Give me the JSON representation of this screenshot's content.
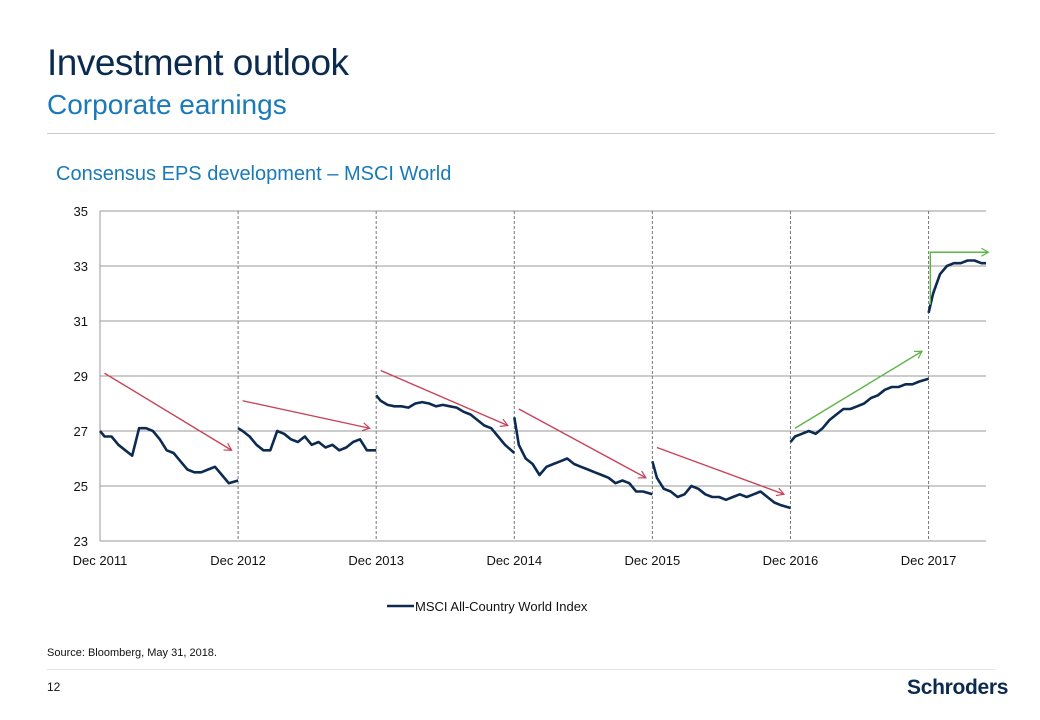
{
  "header": {
    "title": "Investment outlook",
    "subtitle": "Corporate earnings"
  },
  "chart_data": {
    "type": "line",
    "title": "Consensus EPS development – MSCI World",
    "xlabel": "",
    "ylabel": "",
    "ylim": [
      23,
      35
    ],
    "yticks": [
      23,
      25,
      27,
      29,
      31,
      33,
      35
    ],
    "xlim": [
      2011.917,
      2018.333
    ],
    "xticks": [
      {
        "label": "Dec 2011",
        "x": 2011.917
      },
      {
        "label": "Dec 2012",
        "x": 2012.917
      },
      {
        "label": "Dec 2013",
        "x": 2013.917
      },
      {
        "label": "Dec 2014",
        "x": 2014.917
      },
      {
        "label": "Dec 2015",
        "x": 2015.917
      },
      {
        "label": "Dec 2016",
        "x": 2016.917
      },
      {
        "label": "Dec 2017",
        "x": 2017.917
      }
    ],
    "grid": true,
    "year_dividers": [
      2012.917,
      2013.917,
      2014.917,
      2015.917,
      2016.917,
      2017.917
    ],
    "legend": {
      "position": "bottom-center",
      "entries": [
        "MSCI All-Country World Index"
      ]
    },
    "series": [
      {
        "name": "MSCI All-Country World Index",
        "color": "#0d2b52",
        "segments": [
          [
            [
              2011.917,
              27.0
            ],
            [
              2011.95,
              26.8
            ],
            [
              2012.0,
              26.8
            ],
            [
              2012.05,
              26.5
            ],
            [
              2012.1,
              26.3
            ],
            [
              2012.15,
              26.1
            ],
            [
              2012.2,
              27.1
            ],
            [
              2012.25,
              27.1
            ],
            [
              2012.3,
              27.0
            ],
            [
              2012.35,
              26.7
            ],
            [
              2012.4,
              26.3
            ],
            [
              2012.45,
              26.2
            ],
            [
              2012.5,
              25.9
            ],
            [
              2012.55,
              25.6
            ],
            [
              2012.6,
              25.5
            ],
            [
              2012.65,
              25.5
            ],
            [
              2012.7,
              25.6
            ],
            [
              2012.75,
              25.7
            ],
            [
              2012.8,
              25.4
            ],
            [
              2012.85,
              25.1
            ],
            [
              2012.917,
              25.2
            ]
          ],
          [
            [
              2012.917,
              27.1
            ],
            [
              2012.95,
              27.0
            ],
            [
              2013.0,
              26.8
            ],
            [
              2013.05,
              26.5
            ],
            [
              2013.1,
              26.3
            ],
            [
              2013.15,
              26.3
            ],
            [
              2013.2,
              27.0
            ],
            [
              2013.25,
              26.9
            ],
            [
              2013.3,
              26.7
            ],
            [
              2013.35,
              26.6
            ],
            [
              2013.4,
              26.8
            ],
            [
              2013.45,
              26.5
            ],
            [
              2013.5,
              26.6
            ],
            [
              2013.55,
              26.4
            ],
            [
              2013.6,
              26.5
            ],
            [
              2013.65,
              26.3
            ],
            [
              2013.7,
              26.4
            ],
            [
              2013.75,
              26.6
            ],
            [
              2013.8,
              26.7
            ],
            [
              2013.85,
              26.3
            ],
            [
              2013.917,
              26.3
            ]
          ],
          [
            [
              2013.917,
              28.3
            ],
            [
              2013.95,
              28.1
            ],
            [
              2014.0,
              27.95
            ],
            [
              2014.05,
              27.9
            ],
            [
              2014.1,
              27.9
            ],
            [
              2014.15,
              27.85
            ],
            [
              2014.2,
              28.0
            ],
            [
              2014.25,
              28.05
            ],
            [
              2014.3,
              28.0
            ],
            [
              2014.35,
              27.9
            ],
            [
              2014.4,
              27.95
            ],
            [
              2014.45,
              27.9
            ],
            [
              2014.5,
              27.85
            ],
            [
              2014.55,
              27.7
            ],
            [
              2014.6,
              27.6
            ],
            [
              2014.65,
              27.4
            ],
            [
              2014.7,
              27.2
            ],
            [
              2014.75,
              27.1
            ],
            [
              2014.8,
              26.8
            ],
            [
              2014.85,
              26.5
            ],
            [
              2014.917,
              26.2
            ]
          ],
          [
            [
              2014.917,
              27.5
            ],
            [
              2014.95,
              26.5
            ],
            [
              2015.0,
              26.0
            ],
            [
              2015.05,
              25.8
            ],
            [
              2015.1,
              25.4
            ],
            [
              2015.15,
              25.7
            ],
            [
              2015.2,
              25.8
            ],
            [
              2015.25,
              25.9
            ],
            [
              2015.3,
              26.0
            ],
            [
              2015.35,
              25.8
            ],
            [
              2015.4,
              25.7
            ],
            [
              2015.45,
              25.6
            ],
            [
              2015.5,
              25.5
            ],
            [
              2015.55,
              25.4
            ],
            [
              2015.6,
              25.3
            ],
            [
              2015.65,
              25.1
            ],
            [
              2015.7,
              25.2
            ],
            [
              2015.75,
              25.1
            ],
            [
              2015.8,
              24.8
            ],
            [
              2015.85,
              24.8
            ],
            [
              2015.917,
              24.7
            ]
          ],
          [
            [
              2015.917,
              25.9
            ],
            [
              2015.95,
              25.3
            ],
            [
              2016.0,
              24.9
            ],
            [
              2016.05,
              24.8
            ],
            [
              2016.1,
              24.6
            ],
            [
              2016.15,
              24.7
            ],
            [
              2016.2,
              25.0
            ],
            [
              2016.25,
              24.9
            ],
            [
              2016.3,
              24.7
            ],
            [
              2016.35,
              24.6
            ],
            [
              2016.4,
              24.6
            ],
            [
              2016.45,
              24.5
            ],
            [
              2016.5,
              24.6
            ],
            [
              2016.55,
              24.7
            ],
            [
              2016.6,
              24.6
            ],
            [
              2016.65,
              24.7
            ],
            [
              2016.7,
              24.8
            ],
            [
              2016.75,
              24.6
            ],
            [
              2016.8,
              24.4
            ],
            [
              2016.85,
              24.3
            ],
            [
              2016.917,
              24.2
            ]
          ],
          [
            [
              2016.917,
              26.6
            ],
            [
              2016.95,
              26.8
            ],
            [
              2017.0,
              26.9
            ],
            [
              2017.05,
              27.0
            ],
            [
              2017.1,
              26.9
            ],
            [
              2017.15,
              27.1
            ],
            [
              2017.2,
              27.4
            ],
            [
              2017.25,
              27.6
            ],
            [
              2017.3,
              27.8
            ],
            [
              2017.35,
              27.8
            ],
            [
              2017.4,
              27.9
            ],
            [
              2017.45,
              28.0
            ],
            [
              2017.5,
              28.2
            ],
            [
              2017.55,
              28.3
            ],
            [
              2017.6,
              28.5
            ],
            [
              2017.65,
              28.6
            ],
            [
              2017.7,
              28.6
            ],
            [
              2017.75,
              28.7
            ],
            [
              2017.8,
              28.7
            ],
            [
              2017.85,
              28.8
            ],
            [
              2017.917,
              28.9
            ]
          ],
          [
            [
              2017.917,
              31.3
            ],
            [
              2017.95,
              32.0
            ],
            [
              2018.0,
              32.7
            ],
            [
              2018.05,
              33.0
            ],
            [
              2018.1,
              33.1
            ],
            [
              2018.15,
              33.1
            ],
            [
              2018.2,
              33.2
            ],
            [
              2018.25,
              33.2
            ],
            [
              2018.3,
              33.1
            ],
            [
              2018.333,
              33.1
            ]
          ]
        ]
      }
    ],
    "annotations": {
      "down_color": "#c8435a",
      "up_color": "#5cb545",
      "trend_arrows": [
        {
          "direction": "down",
          "from": [
            2011.95,
            29.1
          ],
          "to": [
            2012.87,
            26.3
          ]
        },
        {
          "direction": "down",
          "from": [
            2012.95,
            28.1
          ],
          "to": [
            2013.87,
            27.1
          ]
        },
        {
          "direction": "down",
          "from": [
            2013.95,
            29.2
          ],
          "to": [
            2014.87,
            27.2
          ]
        },
        {
          "direction": "down",
          "from": [
            2014.95,
            27.8
          ],
          "to": [
            2015.87,
            25.3
          ]
        },
        {
          "direction": "down",
          "from": [
            2015.95,
            26.4
          ],
          "to": [
            2016.87,
            24.7
          ]
        },
        {
          "direction": "up",
          "from": [
            2016.95,
            27.1
          ],
          "to": [
            2017.87,
            29.9
          ]
        }
      ],
      "step_arrow": {
        "direction": "up",
        "from": [
          2017.93,
          31.6
        ],
        "corner": [
          2017.93,
          33.5
        ],
        "to": [
          2018.35,
          33.5
        ]
      }
    }
  },
  "footer": {
    "source": "Source: Bloomberg, May 31, 2018.",
    "page_number": "12",
    "logo_text": "Schroders"
  }
}
